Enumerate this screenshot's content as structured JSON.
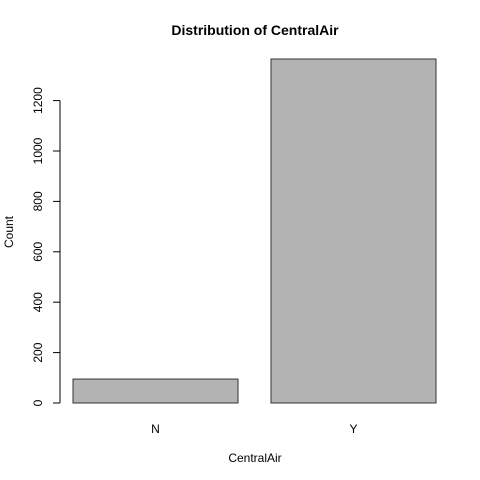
{
  "chart_data": {
    "type": "bar",
    "title": "Distribution of CentralAir",
    "xlabel": "CentralAir",
    "ylabel": "Count",
    "categories": [
      "N",
      "Y"
    ],
    "values": [
      95,
      1365
    ],
    "yticks": [
      0,
      200,
      400,
      600,
      800,
      1000,
      1200
    ],
    "ylim": [
      0,
      1365
    ],
    "bar_fill": "#b3b3b3",
    "bar_stroke": "#333333",
    "grid": false,
    "legend": "none"
  }
}
